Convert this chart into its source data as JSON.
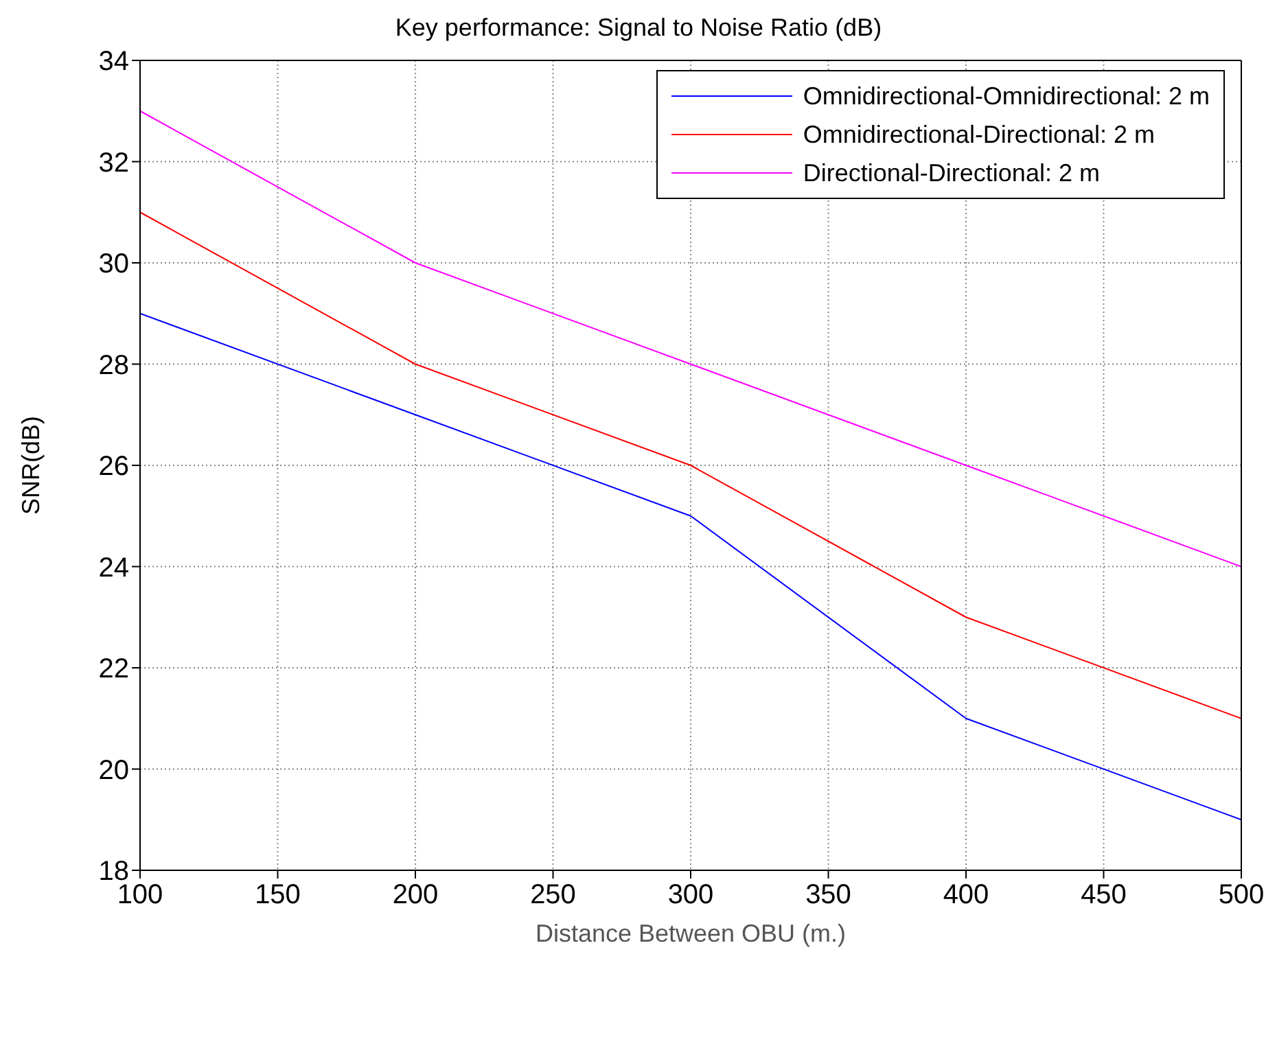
{
  "chart_data": {
    "type": "line",
    "title": "Key performance: Signal to Noise Ratio (dB)",
    "xlabel": "Distance Between OBU (m.)",
    "ylabel": "SNR(dB)",
    "x": [
      100,
      200,
      300,
      400,
      500
    ],
    "series": [
      {
        "name": "Omnidirectional-Omnidirectional: 2 m",
        "color": "#0000ff",
        "values": [
          29,
          27,
          25,
          21,
          19
        ]
      },
      {
        "name": "Omnidirectional-Directional: 2 m",
        "color": "#ff0000",
        "values": [
          31,
          28,
          26,
          23,
          21
        ]
      },
      {
        "name": "Directional-Directional: 2 m",
        "color": "#ff00ff",
        "values": [
          33,
          30,
          28,
          26,
          24
        ]
      }
    ],
    "xlim": [
      100,
      500
    ],
    "xticks": [
      100,
      150,
      200,
      250,
      300,
      350,
      400,
      450,
      500
    ],
    "ylim": [
      18,
      34
    ],
    "yticks": [
      18,
      20,
      22,
      24,
      26,
      28,
      30,
      32,
      34
    ],
    "grid": true,
    "legend": "top right",
    "marker": "none",
    "line_style": "solid"
  }
}
